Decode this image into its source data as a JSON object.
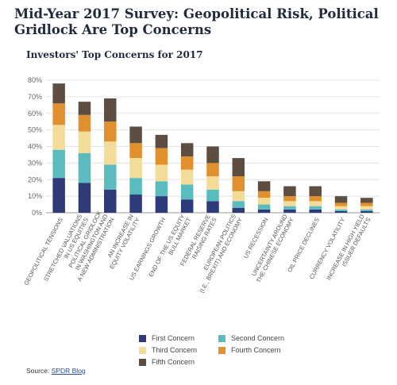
{
  "header": {
    "title": "Mid-Year 2017 Survey: Geopolitical Risk, Political Gridlock Are Top Concerns",
    "subtitle": "Investors' Top Concerns for 2017"
  },
  "source": {
    "prefix": "Source: ",
    "link": "SPDR Blog"
  },
  "chart_data": {
    "type": "bar",
    "stacked": true,
    "ylim": [
      0,
      80
    ],
    "yticks": [
      "0%",
      "10%",
      "20%",
      "30%",
      "40%",
      "50%",
      "60%",
      "70%",
      "80%"
    ],
    "categories": [
      [
        "GEOPOLITICAL TENSIONS"
      ],
      [
        "STRETCHED VALUATIONS",
        "IN US EQUITIES"
      ],
      [
        "POLITICAL GRIDLOCK",
        "IN WASHINGTON AND",
        "A NEW ADMINISTRATION"
      ],
      [
        "AN INCREASE IN",
        "EQUITY VOLATILITY"
      ],
      [
        "US EARNINGS GROWTH"
      ],
      [
        "END OF THE US EQUITY",
        "BULL MARKET"
      ],
      [
        "FEDERAL RESERVE",
        "RAISING RATES"
      ],
      [
        "EUROPEAN POLITICS",
        "(I.E., BREXIT) AND ECONOMY"
      ],
      [
        "US RECESSION"
      ],
      [
        "UNCERTAINTY AROUND",
        "THE CHINESE ECONOMY"
      ],
      [
        "OIL PRICE DECLINES"
      ],
      [
        "CURRENCY VOLATILITY"
      ],
      [
        "INCREASE IN HIGH YIELD",
        "ISSUER DEFAULTS"
      ]
    ],
    "series": [
      {
        "name": "First Concern",
        "color": "#2f3a78",
        "values": [
          21,
          18,
          14,
          11,
          10,
          8,
          7,
          3,
          2,
          2,
          2,
          1,
          1
        ]
      },
      {
        "name": "Second Concern",
        "color": "#5bbcc0",
        "values": [
          17,
          18,
          15,
          10,
          9,
          9,
          7,
          4,
          3,
          2,
          2,
          1,
          1
        ]
      },
      {
        "name": "Third Concern",
        "color": "#f3dc98",
        "values": [
          15,
          13,
          14,
          12,
          10,
          9,
          8,
          6,
          4,
          3,
          3,
          2,
          2
        ]
      },
      {
        "name": "Fourth Concern",
        "color": "#e0902c",
        "values": [
          13,
          10,
          12,
          9,
          10,
          8,
          8,
          9,
          4,
          3,
          3,
          2,
          2
        ]
      },
      {
        "name": "Fifth Concern",
        "color": "#5e4d41",
        "values": [
          12,
          8,
          14,
          10,
          8,
          8,
          10,
          11,
          6,
          6,
          6,
          4,
          3
        ]
      }
    ]
  }
}
